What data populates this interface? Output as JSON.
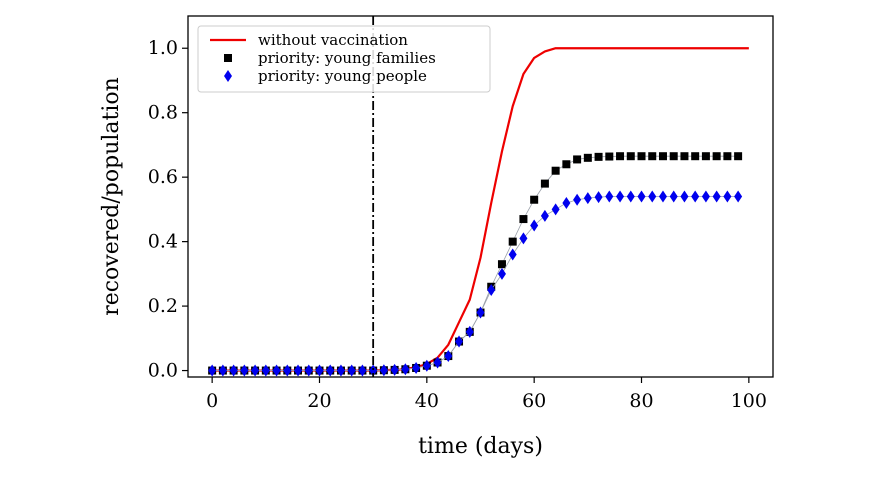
{
  "chart_data": {
    "type": "scatter",
    "xlabel": "time (days)",
    "ylabel": "recovered/population",
    "xlim": [
      -4.5,
      104.5
    ],
    "ylim": [
      -0.02,
      1.1
    ],
    "xticks": [
      0,
      20,
      40,
      60,
      80,
      100
    ],
    "xtick_labels": [
      "0",
      "20",
      "40",
      "60",
      "80",
      "100"
    ],
    "yticks": [
      0.0,
      0.2,
      0.4,
      0.6,
      0.8,
      1.0
    ],
    "ytick_labels": [
      "0.0",
      "0.2",
      "0.4",
      "0.6",
      "0.8",
      "1.0"
    ],
    "grid": false,
    "legend_position": "top-left",
    "vertical_line": {
      "x": 30,
      "style": "dash-dot",
      "color": "#000000"
    },
    "series": [
      {
        "name": "without vaccination",
        "kind": "line",
        "color": "#ee0000",
        "x": [
          0,
          10,
          20,
          30,
          35,
          38,
          40,
          42,
          44,
          46,
          48,
          50,
          52,
          54,
          56,
          58,
          60,
          62,
          64,
          66,
          70,
          80,
          90,
          100
        ],
        "y": [
          0.0,
          0.0,
          0.0,
          0.0,
          0.003,
          0.01,
          0.02,
          0.04,
          0.08,
          0.15,
          0.22,
          0.35,
          0.52,
          0.68,
          0.82,
          0.92,
          0.97,
          0.99,
          1.0,
          1.0,
          1.0,
          1.0,
          1.0,
          1.0
        ]
      },
      {
        "name": "priority: young families",
        "kind": "markers",
        "marker": "square",
        "color": "#000000",
        "x": [
          0,
          2,
          4,
          6,
          8,
          10,
          12,
          14,
          16,
          18,
          20,
          22,
          24,
          26,
          28,
          30,
          32,
          34,
          36,
          38,
          40,
          42,
          44,
          46,
          48,
          50,
          52,
          54,
          56,
          58,
          60,
          62,
          64,
          66,
          68,
          70,
          72,
          74,
          76,
          78,
          80,
          82,
          84,
          86,
          88,
          90,
          92,
          94,
          96,
          98
        ],
        "y": [
          0.0,
          0.0,
          0.0,
          0.0,
          0.0,
          0.0,
          0.0,
          0.0,
          0.0,
          0.0,
          0.0,
          0.0,
          0.0,
          0.0,
          0.0,
          0.0,
          0.001,
          0.002,
          0.004,
          0.008,
          0.015,
          0.025,
          0.045,
          0.09,
          0.12,
          0.18,
          0.26,
          0.33,
          0.4,
          0.47,
          0.53,
          0.58,
          0.62,
          0.64,
          0.655,
          0.66,
          0.663,
          0.664,
          0.665,
          0.665,
          0.665,
          0.665,
          0.665,
          0.665,
          0.665,
          0.665,
          0.665,
          0.665,
          0.665,
          0.665
        ]
      },
      {
        "name": "priority: young people",
        "kind": "markers",
        "marker": "diamond",
        "color": "#0000ee",
        "x": [
          0,
          2,
          4,
          6,
          8,
          10,
          12,
          14,
          16,
          18,
          20,
          22,
          24,
          26,
          28,
          30,
          32,
          34,
          36,
          38,
          40,
          42,
          44,
          46,
          48,
          50,
          52,
          54,
          56,
          58,
          60,
          62,
          64,
          66,
          68,
          70,
          72,
          74,
          76,
          78,
          80,
          82,
          84,
          86,
          88,
          90,
          92,
          94,
          96,
          98
        ],
        "y": [
          0.0,
          0.0,
          0.0,
          0.0,
          0.0,
          0.0,
          0.0,
          0.0,
          0.0,
          0.0,
          0.0,
          0.0,
          0.0,
          0.0,
          0.0,
          0.0,
          0.001,
          0.002,
          0.004,
          0.008,
          0.015,
          0.025,
          0.045,
          0.09,
          0.12,
          0.18,
          0.25,
          0.3,
          0.36,
          0.41,
          0.45,
          0.48,
          0.5,
          0.52,
          0.53,
          0.535,
          0.538,
          0.54,
          0.54,
          0.54,
          0.54,
          0.54,
          0.54,
          0.54,
          0.54,
          0.54,
          0.54,
          0.54,
          0.54,
          0.54
        ]
      }
    ]
  }
}
